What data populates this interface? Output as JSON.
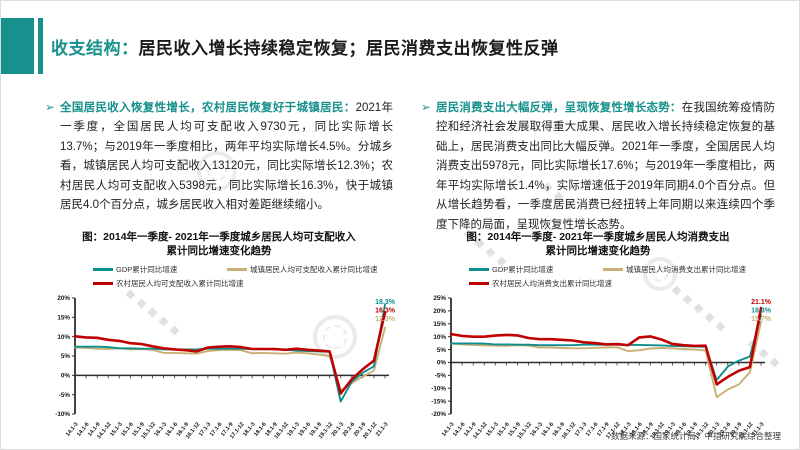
{
  "slide": {
    "bullet_glyph": "➢",
    "header": {
      "topic": "收支结构：",
      "title": "居民收入增长持续稳定恢复；居民消费支出恢复性反弹"
    },
    "left_section": {
      "heading": "全国居民收入恢复性增长，农村居民恢复好于城镇居民：",
      "body": "2021年一季度，全国居民人均可支配收入9730元，同比实际增长13.7%；与2019年一季度相比，两年平均实际增长4.5%。分城乡看，城镇居民人均可支配收入13120元，同比实际增长12.3%；农村居民人均可支配收入5398元，同比实际增长16.3%，快于城镇居民4.0个百分点，城乡居民收入相对差距继续缩小。"
    },
    "right_section": {
      "heading": "居民消费支出大幅反弹，呈现恢复性增长态势：",
      "body": "在我国统筹疫情防控和经济社会发展取得重大成果、居民收入增长持续稳定恢复的基础上，居民消费支出同比大幅反弹。2021年一季度，全国居民人均消费支出5978元，同比实际增长17.6%；与2019年一季度相比，两年平均实际增长1.4%，实际增速低于2019年同期4.0个百分点。但从增长趋势看，一季度居民消费已经扭转上年同期以来连续四个季度下降的局面，呈现恢复性增长态势。"
    },
    "footer": "数据来源：国家统计局，中指研究院综合整理"
  },
  "colors": {
    "accent_teal": "#17918D",
    "gdp_line": "#0D8E8C",
    "urban_line": "#C8AF76",
    "rural_line": "#C00000"
  },
  "chart_data": [
    {
      "type": "line",
      "title_line1": "图：2014年一季度- 2021年一季度城乡居民人均可支配收入",
      "title_line2": "累计同比增速变化趋势",
      "xlabel": "",
      "ylabel": "",
      "ylim": [
        -10,
        20
      ],
      "ytick_step": 5,
      "grid": false,
      "legend_position": "top",
      "categories": [
        "14.1-3",
        "14.1-6",
        "14.1-9",
        "14.1-12",
        "15.1-3",
        "15.1-6",
        "15.1-9",
        "15.1-12",
        "16.1-3",
        "16.1-6",
        "16.1-9",
        "16.1-12",
        "17.1-3",
        "17.1-6",
        "17.1-9",
        "17.1-12",
        "18.1-3",
        "18.1-6",
        "18.1-9",
        "18.1-12",
        "19.1-3",
        "19.1-6",
        "19.1-9",
        "19.1-12",
        "20.1-3",
        "20.1-6",
        "20.1-9",
        "20.1-12",
        "21.1-3"
      ],
      "series": [
        {
          "name": "GDP累计同比增速",
          "color": "#0D8E8C",
          "end_label": "18.3%",
          "values": [
            7.4,
            7.4,
            7.4,
            7.3,
            7.0,
            7.0,
            6.9,
            6.9,
            6.7,
            6.7,
            6.7,
            6.7,
            6.9,
            6.9,
            6.9,
            6.9,
            6.8,
            6.8,
            6.7,
            6.6,
            6.4,
            6.3,
            6.2,
            6.1,
            -6.8,
            -1.6,
            0.7,
            2.3,
            18.3
          ]
        },
        {
          "name": "城镇居民人均可支配收入累计同比增速",
          "color": "#C8AF76",
          "end_label": "12.3%",
          "values": [
            7.2,
            7.1,
            6.9,
            6.8,
            7.0,
            6.7,
            6.8,
            6.6,
            5.8,
            5.8,
            5.7,
            5.6,
            6.3,
            6.5,
            6.6,
            6.5,
            5.7,
            5.8,
            5.7,
            5.6,
            5.9,
            5.7,
            5.4,
            5.0,
            -3.9,
            -2.0,
            -0.3,
            1.2,
            12.3
          ]
        },
        {
          "name": "农村居民人均可支配收入累计同比增速",
          "color": "#C00000",
          "end_label": "16.3%",
          "values": [
            10.1,
            9.8,
            9.7,
            9.2,
            8.9,
            8.3,
            8.1,
            7.5,
            7.0,
            6.7,
            6.5,
            6.2,
            7.2,
            7.4,
            7.5,
            7.3,
            6.8,
            6.8,
            6.8,
            6.6,
            6.9,
            6.6,
            6.4,
            6.2,
            -4.7,
            -1.0,
            1.6,
            3.8,
            16.3
          ]
        }
      ]
    },
    {
      "type": "line",
      "title_line1": "图：2014年一季度- 2021年一季度城乡居民人均消费支出",
      "title_line2": "累计同比增速变化趋势",
      "xlabel": "",
      "ylabel": "",
      "ylim": [
        -20,
        25
      ],
      "ytick_step": 5,
      "grid": false,
      "legend_position": "top",
      "categories": [
        "14.1-3",
        "14.1-6",
        "14.1-9",
        "14.1-12",
        "15.1-3",
        "15.1-6",
        "15.1-9",
        "15.1-12",
        "16.1-3",
        "16.1-6",
        "16.1-9",
        "16.1-12",
        "17.1-3",
        "17.1-6",
        "17.1-9",
        "17.1-12",
        "18.1-3",
        "18.1-6",
        "18.1-9",
        "18.1-12",
        "19.1-3",
        "19.1-6",
        "19.1-9",
        "19.1-12",
        "20.1-3",
        "20.1-6",
        "20.1-9",
        "20.1-12",
        "21.1-3"
      ],
      "series": [
        {
          "name": "GDP累计同比增速",
          "color": "#0D8E8C",
          "end_label": "18.3%",
          "values": [
            7.4,
            7.4,
            7.4,
            7.3,
            7.0,
            7.0,
            6.9,
            6.9,
            6.7,
            6.7,
            6.7,
            6.7,
            6.9,
            6.9,
            6.9,
            6.9,
            6.8,
            6.8,
            6.7,
            6.6,
            6.4,
            6.3,
            6.2,
            6.1,
            -6.8,
            -1.6,
            0.7,
            2.3,
            18.3
          ]
        },
        {
          "name": "城镇居民人均消费支出累计同比增速",
          "color": "#C8AF76",
          "end_label": "15.7%",
          "values": [
            7.3,
            7.0,
            6.8,
            6.6,
            6.5,
            6.4,
            6.7,
            6.5,
            5.8,
            5.8,
            5.6,
            5.5,
            5.5,
            5.7,
            5.8,
            5.9,
            4.4,
            4.7,
            5.4,
            5.6,
            5.5,
            5.2,
            5.0,
            4.6,
            -13.5,
            -10.5,
            -8.5,
            -3.8,
            15.7
          ]
        },
        {
          "name": "农村居民人均消费支出累计同比增速",
          "color": "#C00000",
          "end_label": "21.1%",
          "values": [
            11.0,
            10.3,
            10.0,
            10.0,
            10.4,
            10.7,
            10.5,
            9.5,
            9.0,
            9.0,
            8.8,
            8.5,
            7.8,
            7.5,
            7.0,
            7.1,
            6.7,
            9.7,
            10.1,
            8.9,
            7.2,
            6.7,
            6.4,
            6.5,
            -8.5,
            -5.6,
            -3.2,
            -1.8,
            21.1
          ]
        }
      ]
    }
  ]
}
